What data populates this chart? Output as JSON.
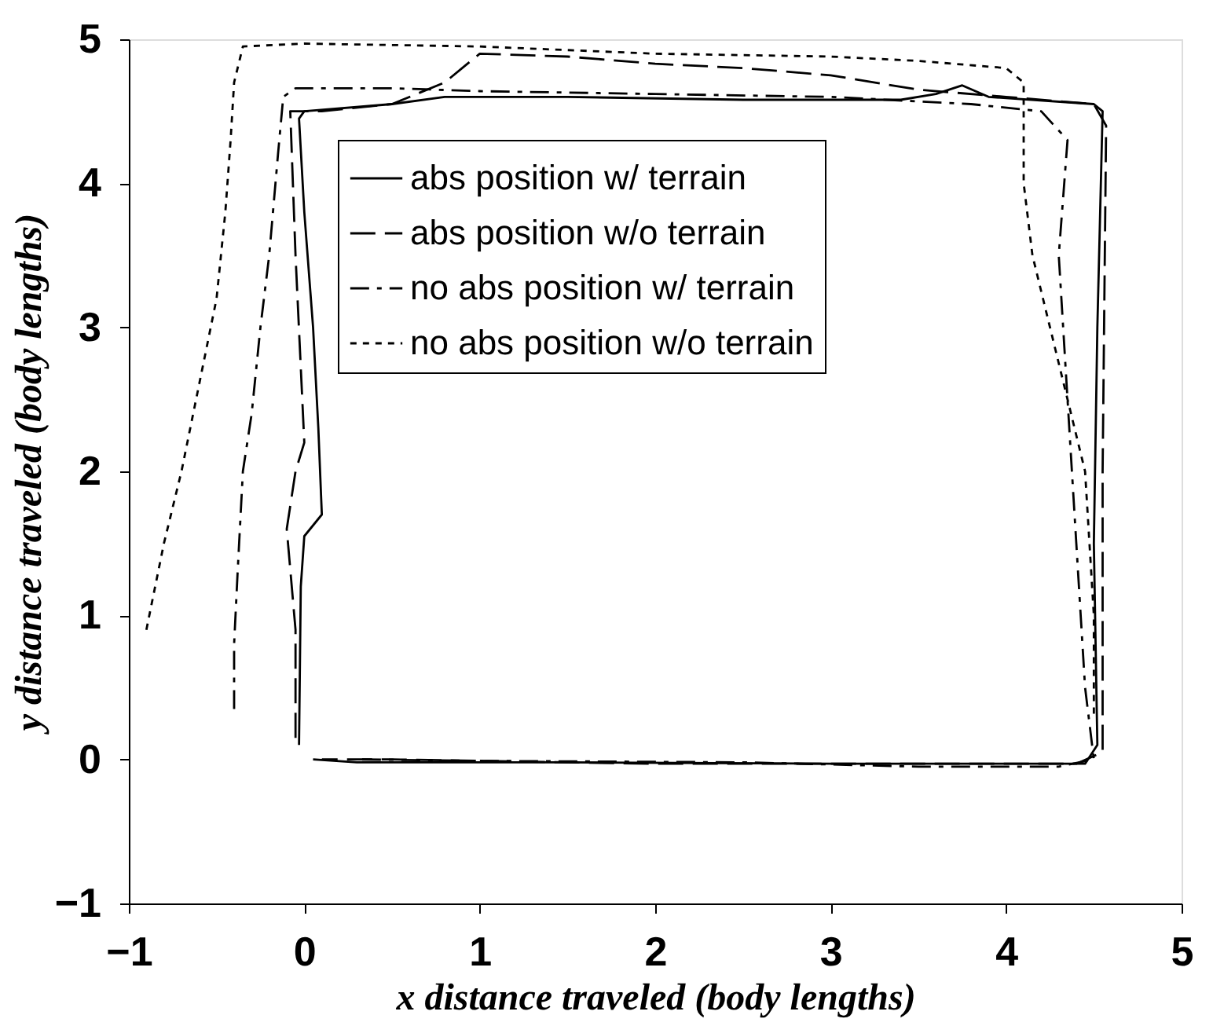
{
  "chart_data": {
    "type": "line",
    "xlabel": "x distance traveled (body lengths)",
    "ylabel": "y distance traveled (body lengths)",
    "xlim": [
      -1,
      5
    ],
    "ylim": [
      -1,
      5
    ],
    "xticks": [
      -1,
      0,
      1,
      2,
      3,
      4,
      5
    ],
    "yticks": [
      -1,
      0,
      1,
      2,
      3,
      4,
      5
    ],
    "grid": false,
    "legend": "top",
    "marker": "none",
    "series": [
      {
        "name": "abs position w/ terrain",
        "color": "#000000",
        "line_style": "solid",
        "x": [
          -0.03,
          -0.02,
          0.0,
          0.1,
          0.08,
          0.05,
          0.0,
          -0.03,
          0.0,
          0.5,
          0.8,
          1.5,
          2.5,
          3.4,
          3.6,
          3.75,
          3.9,
          4.5,
          4.55,
          4.52,
          4.5,
          4.52,
          4.45,
          3.0,
          1.5,
          0.3,
          0.05
        ],
        "values": [
          0.1,
          1.2,
          1.55,
          1.7,
          2.3,
          3.0,
          3.8,
          4.45,
          4.5,
          4.55,
          4.6,
          4.6,
          4.58,
          4.58,
          4.62,
          4.68,
          4.6,
          4.55,
          4.5,
          3.0,
          1.5,
          0.1,
          -0.03,
          -0.03,
          -0.02,
          -0.02,
          0.0
        ]
      },
      {
        "name": "abs position w/o terrain",
        "color": "#000000",
        "line_style": "dashed",
        "x": [
          -0.05,
          -0.05,
          -0.1,
          -0.05,
          0.0,
          -0.05,
          -0.08,
          0.1,
          0.5,
          0.8,
          0.9,
          1.0,
          1.5,
          2.0,
          2.5,
          3.0,
          3.5,
          4.0,
          4.5,
          4.57,
          4.55,
          4.55,
          4.4,
          2.0,
          0.5,
          0.1
        ],
        "values": [
          0.15,
          0.9,
          1.6,
          2.0,
          2.2,
          3.5,
          4.5,
          4.5,
          4.55,
          4.7,
          4.8,
          4.9,
          4.88,
          4.83,
          4.8,
          4.75,
          4.65,
          4.6,
          4.55,
          4.4,
          2.0,
          0.05,
          -0.03,
          -0.03,
          0.0,
          0.0
        ]
      },
      {
        "name": "no abs position w/ terrain",
        "color": "#000000",
        "line_style": "dashdot",
        "x": [
          -0.4,
          -0.4,
          -0.38,
          -0.35,
          -0.3,
          -0.25,
          -0.2,
          -0.15,
          -0.12,
          -0.05,
          0.5,
          1.0,
          2.0,
          3.0,
          3.8,
          4.2,
          4.35,
          4.3,
          4.35,
          4.4,
          4.45,
          4.5,
          4.3,
          3.5,
          2.5,
          1.0,
          0.3
        ],
        "values": [
          0.35,
          0.8,
          1.3,
          2.0,
          2.4,
          3.0,
          3.5,
          4.2,
          4.6,
          4.66,
          4.66,
          4.64,
          4.62,
          4.6,
          4.55,
          4.5,
          4.3,
          3.5,
          2.5,
          1.5,
          0.5,
          0.0,
          -0.05,
          -0.05,
          -0.02,
          -0.01,
          0.0
        ]
      },
      {
        "name": "no abs position w/o terrain",
        "color": "#000000",
        "line_style": "dotted",
        "x": [
          -0.9,
          -0.8,
          -0.7,
          -0.6,
          -0.5,
          -0.45,
          -0.42,
          -0.4,
          -0.35,
          0.0,
          1.0,
          2.0,
          3.0,
          3.5,
          4.0,
          4.1,
          4.1,
          4.15,
          4.25,
          4.35,
          4.45,
          4.5,
          4.5
        ],
        "values": [
          0.9,
          1.5,
          2.0,
          2.6,
          3.2,
          3.8,
          4.3,
          4.7,
          4.95,
          4.97,
          4.95,
          4.9,
          4.88,
          4.85,
          4.8,
          4.7,
          4.0,
          3.5,
          3.0,
          2.5,
          2.0,
          1.0,
          0.3
        ]
      }
    ]
  }
}
